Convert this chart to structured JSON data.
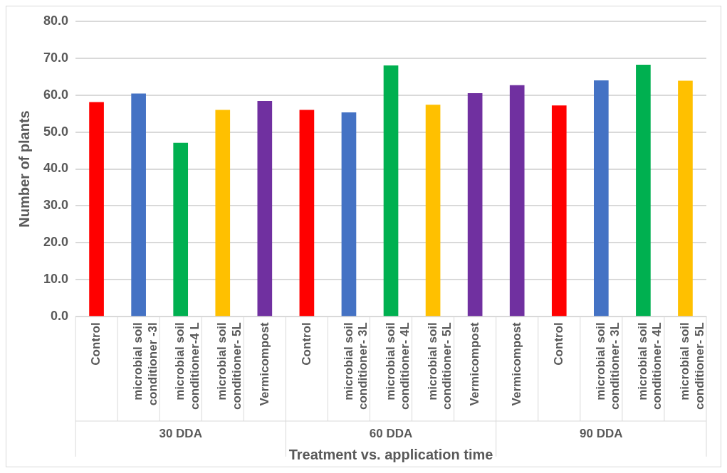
{
  "chart_data": {
    "type": "bar",
    "xlabel": "Treatment vs. application time",
    "ylabel": "Number of plants",
    "categories": [
      "Control",
      "microbial soil conditioner -3l",
      "microbial soil conditioner-4 L",
      "microbial soil conditioner- 5L",
      "Vermicompost",
      "Control",
      "microbial soil conditioner- 3L",
      "microbial soil conditioner- 4L",
      "microbial soil conditioner- 5L",
      "Vermicompost",
      "Vermicompost",
      "Control",
      "microbial soil conditioner- 3L",
      "microbial soil conditioner- 4L",
      "microbial soil conditioner- 5L"
    ],
    "values": [
      58.1,
      60.4,
      47.1,
      56.0,
      58.4,
      56.0,
      55.3,
      68.0,
      57.4,
      60.5,
      62.7,
      57.2,
      64.0,
      68.2,
      63.9
    ],
    "colors": [
      "#ff0000",
      "#4472c4",
      "#00b050",
      "#ffc000",
      "#7030a0",
      "#ff0000",
      "#4472c4",
      "#00b050",
      "#ffc000",
      "#7030a0",
      "#7030a0",
      "#ff0000",
      "#4472c4",
      "#00b050",
      "#ffc000"
    ],
    "ylim": [
      0,
      80
    ],
    "yticks": [
      {
        "value": 0,
        "label": "0.0"
      },
      {
        "value": 10,
        "label": "10.0"
      },
      {
        "value": 20,
        "label": "20.0"
      },
      {
        "value": 30,
        "label": "30.0"
      },
      {
        "value": 40,
        "label": "40.0"
      },
      {
        "value": 50,
        "label": "50.0"
      },
      {
        "value": 60,
        "label": "60.0"
      },
      {
        "value": 70,
        "label": "70.0"
      },
      {
        "value": 80,
        "label": "80.0"
      }
    ],
    "grid": "y",
    "annotations": [
      "30 DDA",
      "60 DDA",
      "90 DDA"
    ]
  }
}
